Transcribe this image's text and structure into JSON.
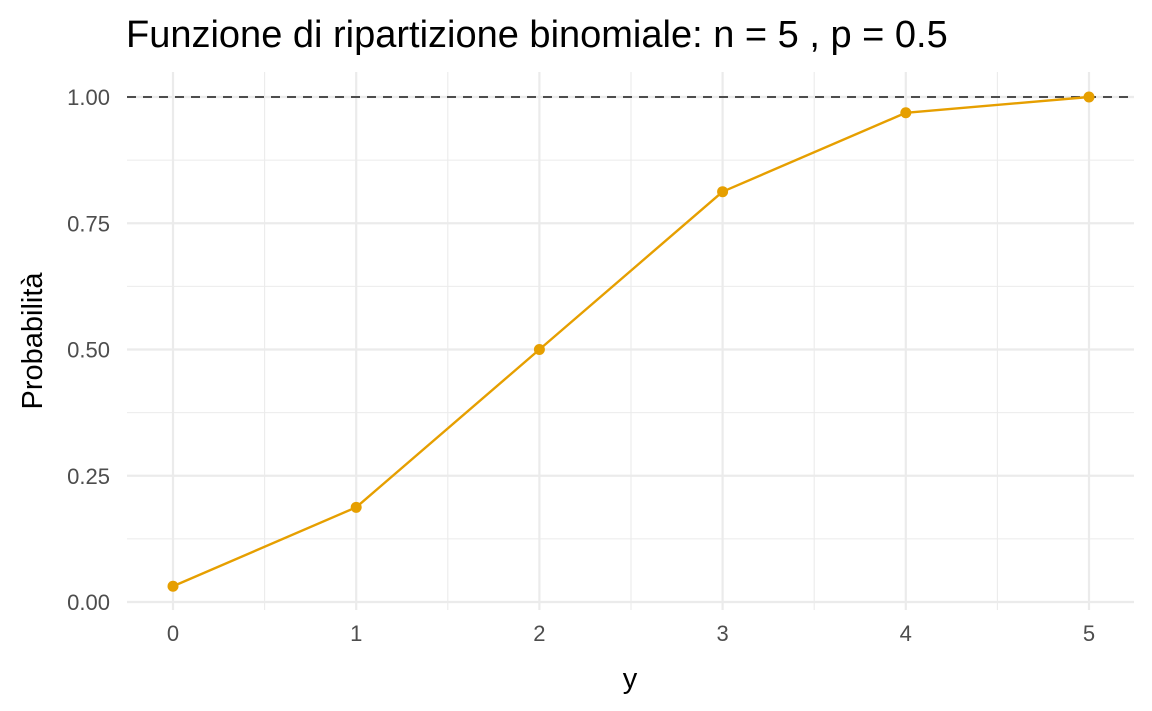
{
  "chart_data": {
    "type": "line",
    "title": "Funzione di ripartizione binomiale: n = 5 , p = 0.5",
    "xlabel": "y",
    "ylabel": "Probabilità",
    "x": [
      0,
      1,
      2,
      3,
      4,
      5
    ],
    "series": [
      {
        "values": [
          0.03125,
          0.1875,
          0.5,
          0.8125,
          0.96875,
          1.0
        ],
        "color": "#E69F00",
        "markers": true
      }
    ],
    "xlim": [
      -0.25,
      5.25
    ],
    "ylim": [
      -0.0,
      1.0
    ],
    "x_ticks": [
      "0",
      "1",
      "2",
      "3",
      "4",
      "5"
    ],
    "y_ticks": [
      "0.00",
      "0.25",
      "0.50",
      "0.75",
      "1.00"
    ],
    "y_tick_values": [
      0,
      0.25,
      0.5,
      0.75,
      1.0
    ],
    "reference_line": {
      "y": 1.0,
      "style": "dashed",
      "color": "#4d4d4d"
    },
    "grid": true,
    "legend": "none"
  }
}
